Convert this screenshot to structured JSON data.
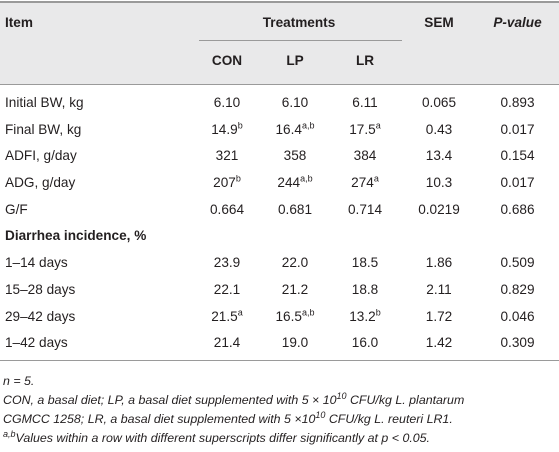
{
  "header": {
    "item": "Item",
    "treatments": "Treatments",
    "sem": "SEM",
    "pvalue": "P-value",
    "groups": [
      "CON",
      "LP",
      "LR"
    ]
  },
  "rows": [
    {
      "item": "Initial BW, kg",
      "con": "6.10",
      "lp": "6.10",
      "lr": "6.11",
      "sem": "0.065",
      "p": "0.893"
    },
    {
      "item": "Final BW, kg",
      "con": "14.9",
      "con_sup": "b",
      "lp": "16.4",
      "lp_sup": "a,b",
      "lr": "17.5",
      "lr_sup": "a",
      "sem": "0.43",
      "p": "0.017"
    },
    {
      "item": "ADFI, g/day",
      "con": "321",
      "lp": "358",
      "lr": "384",
      "sem": "13.4",
      "p": "0.154"
    },
    {
      "item": "ADG, g/day",
      "con": "207",
      "con_sup": "b",
      "lp": "244",
      "lp_sup": "a,b",
      "lr": "274",
      "lr_sup": "a",
      "sem": "10.3",
      "p": "0.017"
    },
    {
      "item": "G/F",
      "con": "0.664",
      "lp": "0.681",
      "lr": "0.714",
      "sem": "0.0219",
      "p": "0.686"
    }
  ],
  "section": "Diarrhea incidence, %",
  "diarrhea_rows": [
    {
      "item": "1–14 days",
      "con": "23.9",
      "lp": "22.0",
      "lr": "18.5",
      "sem": "1.86",
      "p": "0.509"
    },
    {
      "item": "15–28 days",
      "con": "22.1",
      "lp": "21.2",
      "lr": "18.8",
      "sem": "2.11",
      "p": "0.829"
    },
    {
      "item": "29–42 days",
      "con": "21.5",
      "con_sup": "a",
      "lp": "16.5",
      "lp_sup": "a,b",
      "lr": "13.2",
      "lr_sup": "b",
      "sem": "1.72",
      "p": "0.046"
    },
    {
      "item": "1–42 days",
      "con": "21.4",
      "lp": "19.0",
      "lr": "16.0",
      "sem": "1.42",
      "p": "0.309"
    }
  ],
  "notes": {
    "n": "n = 5.",
    "abbr_line1": "CON, a basal diet; LP, a basal diet supplemented with 5 × 10",
    "abbr_exp1": "10",
    "abbr_line1_tail": " CFU/kg L. plantarum",
    "abbr_line2_head": "CGMCC 1258; LR, a basal diet supplemented with 5 ×10",
    "abbr_exp2": "10",
    "abbr_line2_tail": " CFU/kg L. reuteri LR1.",
    "sig_sup": "a,b",
    "sig_text": "Values within a row with different superscripts differ significantly at p < 0.05."
  },
  "colors": {
    "header_band": "#e9e9ea",
    "rule": "#9a9a9a",
    "text": "#231f20"
  }
}
